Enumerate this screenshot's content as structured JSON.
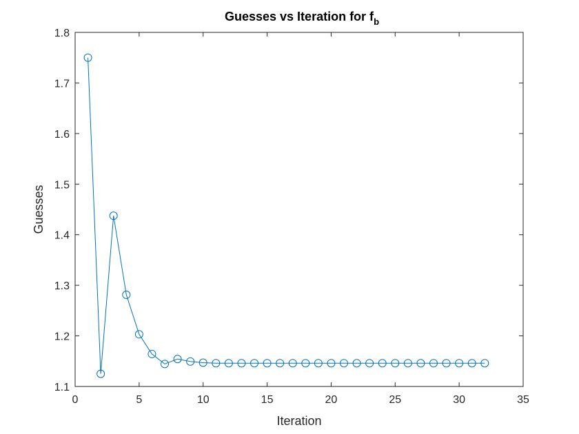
{
  "chart_data": {
    "type": "line",
    "title": {
      "main": "Guesses vs Iteration for f",
      "subscript": "b"
    },
    "xlabel": "Iteration",
    "ylabel": "Guesses",
    "xlim": [
      0,
      35
    ],
    "ylim": [
      1.1,
      1.8
    ],
    "xticks": [
      0,
      5,
      10,
      15,
      20,
      25,
      30,
      35
    ],
    "yticks": [
      1.1,
      1.2,
      1.3,
      1.4,
      1.5,
      1.6,
      1.7,
      1.8
    ],
    "xtick_labels": [
      "0",
      "5",
      "10",
      "15",
      "20",
      "25",
      "30",
      "35"
    ],
    "ytick_labels": [
      "1.1",
      "1.2",
      "1.3",
      "1.4",
      "1.5",
      "1.6",
      "1.7",
      "1.8"
    ],
    "grid": false,
    "marker": "circle",
    "line_color": "#0072BD",
    "series": [
      {
        "x": [
          1,
          2,
          3,
          4,
          5,
          6,
          7,
          8,
          9,
          10,
          11,
          12,
          13,
          14,
          15,
          16,
          17,
          18,
          19,
          20,
          21,
          22,
          23,
          24,
          25,
          26,
          27,
          28,
          29,
          30,
          31,
          32
        ],
        "values": [
          1.75,
          1.125,
          1.4375,
          1.2813,
          1.2031,
          1.1641,
          1.1445,
          1.1543,
          1.1494,
          1.147,
          1.146,
          1.146,
          1.146,
          1.146,
          1.146,
          1.146,
          1.146,
          1.146,
          1.146,
          1.146,
          1.146,
          1.146,
          1.146,
          1.146,
          1.146,
          1.146,
          1.146,
          1.146,
          1.146,
          1.146,
          1.146,
          1.146
        ]
      }
    ]
  }
}
